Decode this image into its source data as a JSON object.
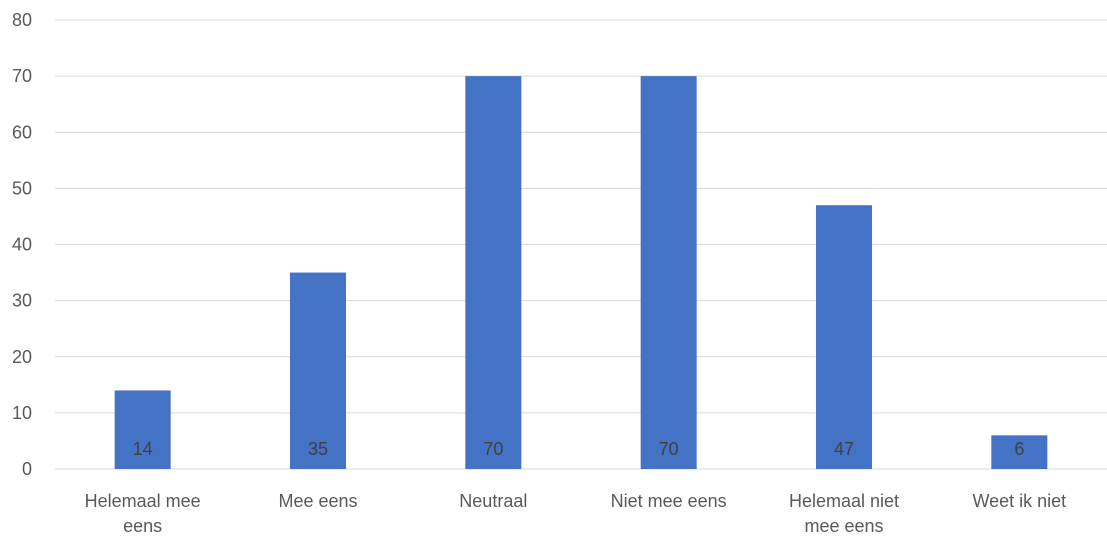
{
  "chart_data": {
    "type": "bar",
    "title": "",
    "xlabel": "",
    "ylabel": "",
    "categories": [
      [
        "Helemaal mee",
        "eens"
      ],
      [
        "Mee eens"
      ],
      [
        "Neutraal"
      ],
      [
        "Niet mee eens"
      ],
      [
        "Helemaal niet",
        "mee eens"
      ],
      [
        "Weet ik niet"
      ]
    ],
    "values": [
      14,
      35,
      70,
      70,
      47,
      6
    ],
    "data_labels": [
      "14",
      "35",
      "70",
      "70",
      "47",
      "6"
    ],
    "ylim": [
      0,
      80
    ],
    "yticks": [
      0,
      10,
      20,
      30,
      40,
      50,
      60,
      70,
      80
    ],
    "grid": true,
    "legend": "none",
    "colors": {
      "bar": "#4472c4",
      "grid": "#d9d9d9",
      "text": "#595959"
    }
  }
}
